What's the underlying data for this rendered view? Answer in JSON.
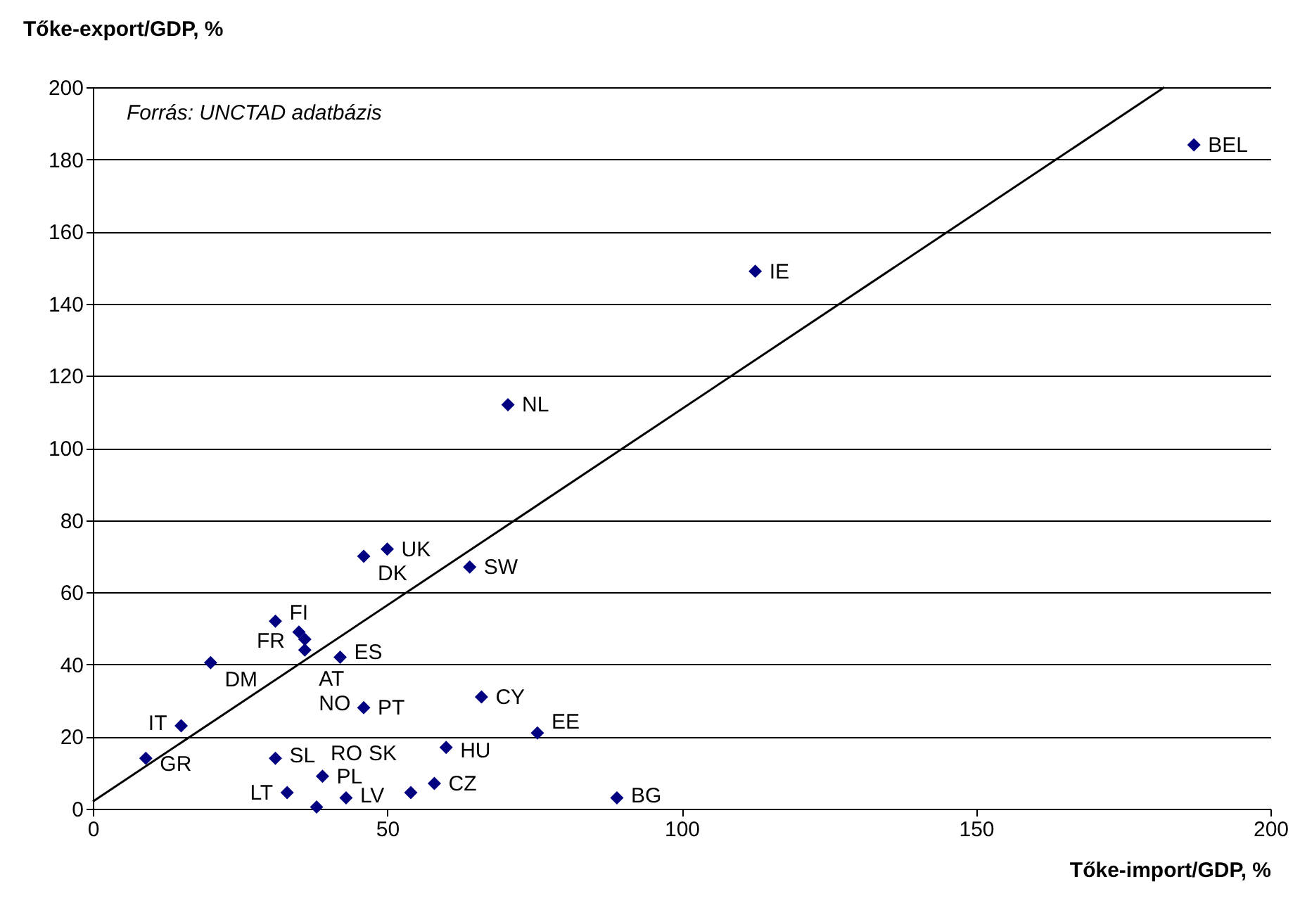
{
  "chart_data": {
    "type": "scatter",
    "xlabel": "Tőke-import/GDP, %",
    "ylabel": "Tőke-export/GDP, %",
    "annotations": [
      "Forrás: UNCTAD adatbázis",
      {
        "text": "BEL",
        "x": 187,
        "y": 184
      },
      {
        "text": "IE",
        "x": 112.5,
        "y": 149
      },
      {
        "text": "NL",
        "x": 70.5,
        "y": 112
      },
      {
        "text": "UK",
        "x": 50,
        "y": 72
      },
      {
        "text": "DK",
        "x": 46,
        "y": 70
      },
      {
        "text": "SW",
        "x": 64,
        "y": 67
      },
      {
        "text": "FI",
        "x": 31,
        "y": 52
      },
      {
        "text": "FR",
        "x": 35,
        "y": 49
      },
      {
        "text": "AT",
        "x": 36,
        "y": 47
      },
      {
        "text": "NO",
        "x": 36,
        "y": 44
      },
      {
        "text": "ES",
        "x": 42,
        "y": 42
      },
      {
        "text": "DM",
        "x": 20,
        "y": 40.5
      },
      {
        "text": "CY",
        "x": 66,
        "y": 31
      },
      {
        "text": "PT",
        "x": 46,
        "y": 28
      },
      {
        "text": "IT",
        "x": 15,
        "y": 23
      },
      {
        "text": "EE",
        "x": 75.5,
        "y": 21
      },
      {
        "text": "HU",
        "x": 60,
        "y": 17
      },
      {
        "text": "GR",
        "x": 9,
        "y": 14
      },
      {
        "text": "SL",
        "x": 31,
        "y": 14
      },
      {
        "text": "PL",
        "x": 39,
        "y": 9
      },
      {
        "text": "CZ",
        "x": 58,
        "y": 7
      },
      {
        "text": "LT",
        "x": 33,
        "y": 4.5
      },
      {
        "text": "SK",
        "x": 54,
        "y": 4.5
      },
      {
        "text": "LV",
        "x": 43,
        "y": 3
      },
      {
        "text": "BG",
        "x": 89,
        "y": 3
      },
      {
        "text": "RO",
        "x": 38,
        "y": 0.5
      }
    ],
    "series": [
      {
        "color": "#000080",
        "marker": "diamond",
        "x": [
          187,
          112.5,
          70.5,
          50,
          46,
          64,
          31,
          35,
          36,
          36,
          42,
          20,
          66,
          46,
          15,
          75.5,
          60,
          9,
          31,
          39,
          58,
          33,
          54,
          43,
          89,
          38
        ],
        "values": [
          184,
          149,
          112,
          72,
          70,
          67,
          52,
          49,
          47,
          44,
          42,
          40.5,
          31,
          28,
          23,
          21,
          17,
          14,
          14,
          9,
          7,
          4.5,
          4.5,
          3,
          3,
          0.5
        ]
      },
      {
        "type": "line",
        "color": "#000000",
        "x": [
          0,
          182
        ],
        "values": [
          2,
          200
        ]
      }
    ],
    "xlim": [
      0,
      200
    ],
    "xticks": [
      0,
      50,
      100,
      150,
      200
    ],
    "ylim": [
      0,
      200
    ],
    "yticks": [
      0,
      20,
      40,
      60,
      80,
      100,
      120,
      140,
      160,
      180,
      200
    ],
    "grid": "y",
    "line_style": "solid"
  }
}
